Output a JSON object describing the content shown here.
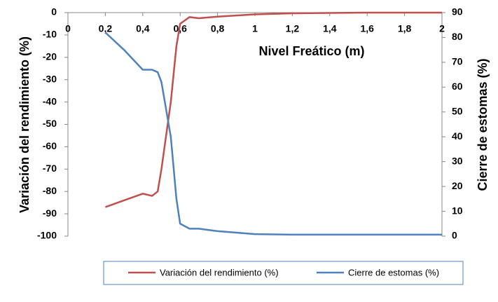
{
  "chart_data": {
    "type": "line",
    "x_axis_label": "Nivel Freático (m)",
    "y_axis_label": "Variación del rendimiento (%)",
    "y2_axis_label": "Cierre de estomas (%)",
    "x": [
      0.2,
      0.3,
      0.4,
      0.45,
      0.48,
      0.5,
      0.55,
      0.58,
      0.6,
      0.65,
      0.7,
      0.8,
      1,
      1.2,
      1.6,
      2
    ],
    "series": [
      {
        "name": "Variación del rendimiento (%)",
        "color": "#c0504d",
        "values": [
          -87,
          -84,
          -81,
          -82,
          -80,
          -70,
          -40,
          -15,
          -5,
          -2,
          -2.5,
          -1.8,
          -0.8,
          -0.3,
          0,
          0
        ]
      },
      {
        "name": "Cierre de estomas (%)",
        "color": "#4f81bd",
        "axis": "y2",
        "values": [
          82,
          75,
          67,
          67,
          66,
          62,
          40,
          15,
          5,
          3,
          3,
          2,
          0.8,
          0.6,
          0.6,
          0.6
        ]
      }
    ],
    "xlim": [
      0,
      2
    ],
    "xticks": [
      0,
      {
        "value": 0.2,
        "label": "0,2"
      },
      {
        "value": 0.4,
        "label": "0,4"
      },
      {
        "value": 0.6,
        "label": "0,6"
      },
      {
        "value": 0.8,
        "label": "0,8"
      },
      1,
      {
        "value": 1.2,
        "label": "1,2"
      },
      {
        "value": 1.4,
        "label": "1,4"
      },
      {
        "value": 1.6,
        "label": "1,6"
      },
      {
        "value": 1.8,
        "label": "1,8"
      },
      2
    ],
    "ylim": [
      -100,
      0
    ],
    "yticks": [
      -100,
      -90,
      -80,
      -70,
      -60,
      -50,
      -40,
      -30,
      -20,
      -10,
      0
    ],
    "y2lim": [
      0,
      90
    ],
    "y2ticks": [
      0,
      10,
      20,
      30,
      40,
      50,
      60,
      70,
      80,
      90
    ],
    "legend": "bottom"
  }
}
